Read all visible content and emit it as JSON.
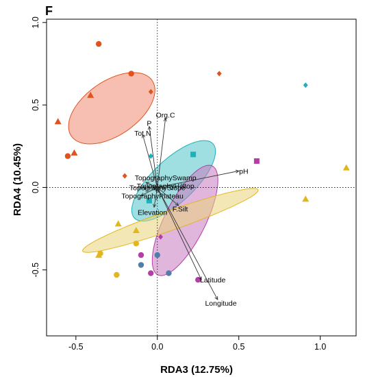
{
  "chart_data": {
    "type": "scatter",
    "panel_label": "F",
    "xlabel": "RDA3 (12.75%)",
    "ylabel": "RDA4 (10.45%)",
    "xlim": [
      -0.68,
      1.22
    ],
    "ylim": [
      -0.9,
      1.02
    ],
    "x_ticks": [
      -0.5,
      0.0,
      0.5,
      1.0
    ],
    "x_tick_labels": [
      "-0.5",
      "0.0",
      "0.5",
      "1.0"
    ],
    "y_ticks": [
      -0.5,
      0.0,
      0.5,
      1.0
    ],
    "y_tick_labels": [
      "-0.5",
      "0.0",
      "0.5",
      "1.0"
    ],
    "zero_lines": "dotted",
    "colors": {
      "orange": "#e0531f",
      "teal": "#1fb0b9",
      "purple": "#b53da6",
      "yellow": "#e3b61e",
      "blue": "#4f7fa8",
      "arrow": "#333333"
    },
    "ellipses": [
      {
        "group": "orange",
        "color": "#e0531f",
        "fill": "#f08b72",
        "cx": -0.28,
        "cy": 0.48,
        "rx": 0.3,
        "ry": 0.165,
        "angle_deg": 34
      },
      {
        "group": "teal",
        "color": "#1fb0b9",
        "fill": "#50c3c8",
        "cx": 0.1,
        "cy": 0.04,
        "rx": 0.33,
        "ry": 0.13,
        "angle_deg": 43
      },
      {
        "group": "purple",
        "color": "#b53da6",
        "fill": "#c77ac0",
        "cx": 0.17,
        "cy": -0.2,
        "rx": 0.37,
        "ry": 0.125,
        "angle_deg": 63
      },
      {
        "group": "yellow",
        "color": "#e3b61e",
        "fill": "#ead47a",
        "cx": 0.08,
        "cy": -0.2,
        "rx": 0.57,
        "ry": 0.06,
        "angle_deg": 19
      }
    ],
    "points": [
      {
        "x": -0.36,
        "y": 0.87,
        "shape": "circle",
        "color": "#e0531f"
      },
      {
        "x": -0.16,
        "y": 0.69,
        "shape": "circle",
        "color": "#e0531f"
      },
      {
        "x": -0.41,
        "y": 0.56,
        "shape": "triangle",
        "color": "#e0531f"
      },
      {
        "x": -0.04,
        "y": 0.58,
        "shape": "diamond",
        "color": "#e0531f"
      },
      {
        "x": 0.38,
        "y": 0.69,
        "shape": "diamond",
        "color": "#e0531f"
      },
      {
        "x": -0.61,
        "y": 0.4,
        "shape": "triangle",
        "color": "#e0531f"
      },
      {
        "x": -0.51,
        "y": 0.21,
        "shape": "triangle",
        "color": "#e0531f"
      },
      {
        "x": -0.55,
        "y": 0.19,
        "shape": "circle",
        "color": "#e0531f"
      },
      {
        "x": -0.2,
        "y": 0.07,
        "shape": "diamond",
        "color": "#e0531f"
      },
      {
        "x": 0.91,
        "y": 0.62,
        "shape": "diamond",
        "color": "#1fb0b9"
      },
      {
        "x": -0.04,
        "y": 0.19,
        "shape": "diamond",
        "color": "#1fb0b9"
      },
      {
        "x": 0.22,
        "y": 0.2,
        "shape": "square",
        "color": "#1fb0b9"
      },
      {
        "x": -0.05,
        "y": -0.08,
        "shape": "square",
        "color": "#1fb0b9"
      },
      {
        "x": 0.61,
        "y": 0.16,
        "shape": "square",
        "color": "#b53da6"
      },
      {
        "x": 0.02,
        "y": -0.3,
        "shape": "diamond",
        "color": "#b53da6"
      },
      {
        "x": -0.1,
        "y": -0.41,
        "shape": "circle",
        "color": "#b53da6"
      },
      {
        "x": -0.04,
        "y": -0.52,
        "shape": "circle",
        "color": "#b53da6"
      },
      {
        "x": 0.25,
        "y": -0.56,
        "shape": "circle",
        "color": "#b53da6"
      },
      {
        "x": 0.0,
        "y": -0.41,
        "shape": "circle",
        "color": "#4f7fa8"
      },
      {
        "x": -0.1,
        "y": -0.47,
        "shape": "circle",
        "color": "#4f7fa8"
      },
      {
        "x": 0.07,
        "y": -0.52,
        "shape": "circle",
        "color": "#4f7fa8"
      },
      {
        "x": 1.16,
        "y": 0.12,
        "shape": "triangle",
        "color": "#e3b61e"
      },
      {
        "x": 0.91,
        "y": -0.07,
        "shape": "triangle",
        "color": "#e3b61e"
      },
      {
        "x": -0.24,
        "y": -0.22,
        "shape": "triangle",
        "color": "#e3b61e"
      },
      {
        "x": -0.13,
        "y": -0.26,
        "shape": "triangle",
        "color": "#e3b61e"
      },
      {
        "x": -0.13,
        "y": -0.34,
        "shape": "circle",
        "color": "#e3b61e"
      },
      {
        "x": -0.36,
        "y": -0.41,
        "shape": "triangle",
        "color": "#e3b61e"
      },
      {
        "x": -0.35,
        "y": -0.4,
        "shape": "circle",
        "color": "#e3b61e"
      },
      {
        "x": -0.25,
        "y": -0.53,
        "shape": "circle",
        "color": "#e3b61e"
      }
    ],
    "vectors": [
      {
        "label": "Org.C",
        "x": 0.05,
        "y": 0.42,
        "lx": 0.05,
        "ly": 0.44
      },
      {
        "label": "P",
        "x": -0.05,
        "y": 0.37,
        "lx": -0.05,
        "ly": 0.39
      },
      {
        "label": "Tot.N",
        "x": -0.09,
        "y": 0.32,
        "lx": -0.09,
        "ly": 0.33
      },
      {
        "label": "pH",
        "x": 0.5,
        "y": 0.1,
        "lx": 0.53,
        "ly": 0.1
      },
      {
        "label": "TopographySwamp",
        "x": -0.07,
        "y": 0.03,
        "lx": 0.05,
        "ly": 0.06
      },
      {
        "label": "TopographyHilltop",
        "x": 0.0,
        "y": -0.01,
        "lx": 0.05,
        "ly": 0.01
      },
      {
        "label": "TopographySlope",
        "x": 0.01,
        "y": -0.03,
        "lx": 0.0,
        "ly": -0.001
      },
      {
        "label": "TopographyPlateau",
        "x": -0.1,
        "y": -0.05,
        "lx": -0.03,
        "ly": -0.05
      },
      {
        "label": "Elevation",
        "x": -0.02,
        "y": -0.12,
        "lx": -0.03,
        "ly": -0.15
      },
      {
        "label": "F.Silt",
        "x": 0.13,
        "y": -0.11,
        "lx": 0.14,
        "ly": -0.13
      },
      {
        "label": "Latitude",
        "x": 0.27,
        "y": -0.56,
        "lx": 0.34,
        "ly": -0.56
      },
      {
        "label": "Longitude",
        "x": 0.37,
        "y": -0.68,
        "lx": 0.39,
        "ly": -0.7
      }
    ]
  }
}
